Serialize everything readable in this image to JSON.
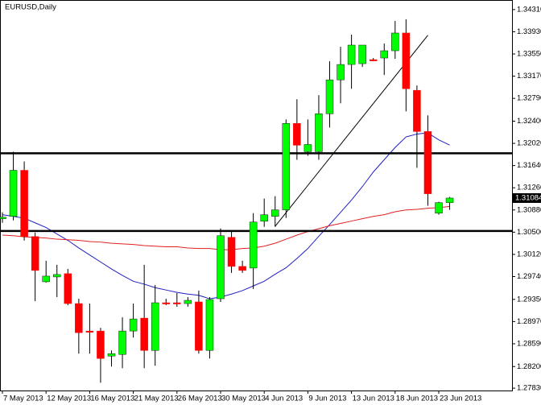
{
  "chart_data": {
    "type": "candlestick",
    "title": "EURUSD,Daily",
    "categories": [
      "7 May 2013",
      null,
      null,
      null,
      "12 May 2013",
      null,
      null,
      null,
      "16 May 2013",
      null,
      null,
      null,
      "21 May 2013",
      null,
      null,
      null,
      "26 May 2013",
      null,
      null,
      null,
      "30 May 2013",
      null,
      null,
      null,
      "4 Jun 2013",
      null,
      null,
      null,
      "9 Jun 2013",
      null,
      null,
      null,
      "13 Jun 2013",
      null,
      null,
      null,
      "18 Jun 2013",
      null,
      null,
      null,
      "23 Jun 2013",
      null
    ],
    "open": [
      1.3073,
      1.30771,
      1.31559,
      1.30425,
      1.29651,
      1.29734,
      1.2979,
      1.29278,
      1.28808,
      1.28808,
      1.28379,
      1.28407,
      1.28808,
      1.29029,
      1.28476,
      1.29292,
      1.29292,
      1.29278,
      1.29306,
      1.28476,
      1.29361,
      1.30412,
      1.29914,
      1.29886,
      1.30688,
      1.30771,
      1.30882,
      1.32361,
      1.31877,
      1.31877,
      1.32527,
      1.33107,
      1.3337,
      1.33384,
      1.33453,
      1.33481,
      1.33605,
      1.33909,
      1.32928,
      1.32223,
      1.30826,
      1.31006
    ],
    "high": [
      1.3084,
      1.31877,
      1.31711,
      1.30495,
      1.30011,
      1.29942,
      1.29872,
      1.29361,
      1.29278,
      1.28863,
      1.28476,
      1.29043,
      1.29278,
      1.29942,
      1.29596,
      1.29361,
      1.29458,
      1.29389,
      1.29499,
      1.29389,
      1.30564,
      1.30522,
      1.30011,
      1.30826,
      1.31075,
      1.31117,
      1.3243,
      1.32776,
      1.3243,
      1.32845,
      1.33425,
      1.33674,
      1.33881,
      1.33674,
      1.33481,
      1.33729,
      1.34116,
      1.34144,
      1.33011,
      1.32499,
      1.3102,
      1.31103
    ],
    "low": [
      1.3066,
      1.30702,
      1.30356,
      1.2932,
      1.29637,
      1.29389,
      1.2925,
      1.28421,
      1.28421,
      1.27923,
      1.282,
      1.28172,
      1.28697,
      1.28172,
      1.28214,
      1.2925,
      1.29223,
      1.29223,
      1.28421,
      1.28338,
      1.29306,
      1.29803,
      1.29803,
      1.29527,
      1.30591,
      1.30591,
      1.30743,
      1.31739,
      1.31808,
      1.31739,
      1.32292,
      1.32706,
      1.32955,
      1.33328,
      1.33425,
      1.3319,
      1.33467,
      1.32568,
      1.31601,
      1.30951,
      1.30799,
      1.30882
    ],
    "close": [
      1.30757,
      1.31559,
      1.30425,
      1.29845,
      1.29748,
      1.29776,
      1.29278,
      1.2878,
      1.28794,
      1.28338,
      1.28421,
      1.28808,
      1.29015,
      1.28476,
      1.29292,
      1.29278,
      1.29278,
      1.29333,
      1.28476,
      1.29347,
      1.30439,
      1.29914,
      1.29845,
      1.30674,
      1.30799,
      1.30882,
      1.32361,
      1.31988,
      1.32001,
      1.32527,
      1.33107,
      1.3337,
      1.33702,
      1.33702,
      1.3345,
      1.33605,
      1.33909,
      1.32955,
      1.32223,
      1.31158,
      1.31006,
      1.31084
    ],
    "up_color": "#00ff00",
    "down_color": "#ff0000",
    "moving_averages": [
      {
        "color": "#2020c0",
        "values": [
          1.308,
          1.3077,
          1.3074,
          1.3066,
          1.3058,
          1.3047,
          1.3036,
          1.3023,
          1.3011,
          1.2999,
          1.2987,
          1.2976,
          1.2966,
          1.2961,
          1.2955,
          1.2951,
          1.2947,
          1.2944,
          1.2942,
          1.2936,
          1.2939,
          1.2944,
          1.295,
          1.2958,
          1.2966,
          1.2978,
          1.2989,
          1.3005,
          1.3022,
          1.3043,
          1.3063,
          1.3084,
          1.3105,
          1.3128,
          1.3153,
          1.3174,
          1.3195,
          1.3213,
          1.3218,
          1.322,
          1.3208,
          1.3199
        ]
      },
      {
        "color": "#e02020",
        "values": [
          1.3045,
          1.3044,
          1.3042,
          1.3041,
          1.304,
          1.3038,
          1.3037,
          1.3036,
          1.3034,
          1.3033,
          1.3031,
          1.303,
          1.3029,
          1.3027,
          1.3026,
          1.3025,
          1.3025,
          1.3023,
          1.3022,
          1.3022,
          1.302,
          1.302,
          1.3022,
          1.3023,
          1.3026,
          1.3031,
          1.3038,
          1.3045,
          1.3051,
          1.3056,
          1.3061,
          1.3065,
          1.3069,
          1.3073,
          1.3077,
          1.308,
          1.3085,
          1.3088,
          1.3089,
          1.3091,
          1.3092,
          1.3094
        ]
      }
    ],
    "horizontal_lines": [
      1.3185,
      1.3052
    ],
    "trendline": [
      1.306,
      1.3387
    ],
    "last_price": 1.31084,
    "ylim": [
      1.2779,
      1.3446
    ],
    "yticks": [
      {
        "value": 1.3431,
        "label": "1.34310"
      },
      {
        "value": 1.3393,
        "label": "1.33930"
      },
      {
        "value": 1.3355,
        "label": "1.33550"
      },
      {
        "value": 1.3317,
        "label": "1.33170"
      },
      {
        "value": 1.3279,
        "label": "1.32790"
      },
      {
        "value": 1.324,
        "label": "1.32400"
      },
      {
        "value": 1.3202,
        "label": "1.32020"
      },
      {
        "value": 1.3164,
        "label": "1.31640"
      },
      {
        "value": 1.3126,
        "label": "1.31260"
      },
      {
        "value": 1.3088,
        "label": "1.30880"
      },
      {
        "value": 1.305,
        "label": "1.30500"
      },
      {
        "value": 1.3012,
        "label": "1.30120"
      },
      {
        "value": 1.2974,
        "label": "1.29740"
      },
      {
        "value": 1.2935,
        "label": "1.29350"
      },
      {
        "value": 1.2897,
        "label": "1.28970"
      },
      {
        "value": 1.2859,
        "label": "1.28590"
      },
      {
        "value": 1.282,
        "label": "1.28200"
      },
      {
        "value": 1.2783,
        "label": "1.27830"
      }
    ]
  }
}
